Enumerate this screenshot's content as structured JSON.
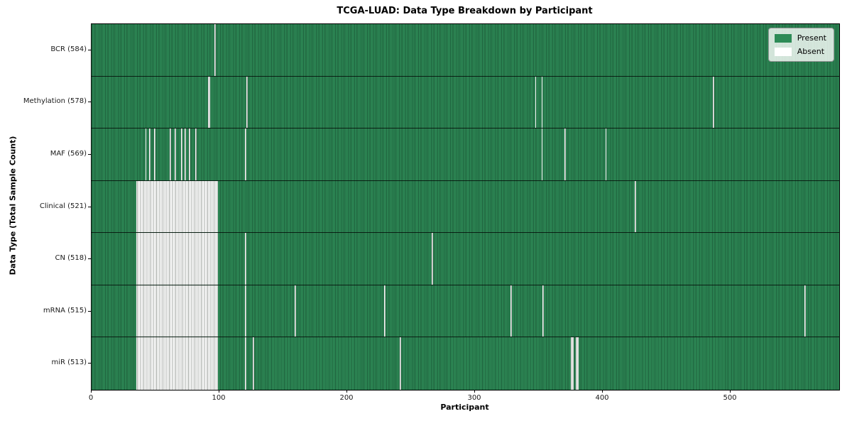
{
  "figure": {
    "title": "TCGA-LUAD: Data Type Breakdown by Participant",
    "xlabel": "Participant",
    "ylabel": "Data Type (Total Sample Count)"
  },
  "legend": {
    "present_label": "Present",
    "absent_label": "Absent"
  },
  "colors": {
    "present_green": "#2e8b57",
    "present_grid_dark": "#1d5f3b",
    "absent_white": "#ffffff",
    "absent_grid_gray": "#a4a8a4",
    "axis_black": "#000000"
  },
  "chart_data": {
    "type": "heatmap",
    "title": "TCGA-LUAD: Data Type Breakdown by Participant",
    "xlabel": "Participant",
    "ylabel": "Data Type (Total Sample Count)",
    "x_range": [
      0,
      585
    ],
    "x_ticks": [
      0,
      100,
      200,
      300,
      400,
      500
    ],
    "grid": "per-cell vertical gridlines",
    "legend_position": "upper right",
    "legend": [
      {
        "label": "Present",
        "color": "#2e8b57"
      },
      {
        "label": "Absent",
        "color": "#ffffff"
      }
    ],
    "rows": [
      {
        "label": "BCR (584)",
        "present_count": 584,
        "absent_ranges": [
          [
            96,
            1
          ]
        ]
      },
      {
        "label": "Methylation (578)",
        "present_count": 578,
        "absent_ranges": [
          [
            91,
            2
          ],
          [
            121,
            1
          ],
          [
            347,
            1
          ],
          [
            352,
            1
          ],
          [
            486,
            1
          ]
        ]
      },
      {
        "label": "MAF (569)",
        "present_count": 569,
        "absent_ranges": [
          [
            42,
            1
          ],
          [
            45,
            1
          ],
          [
            49,
            1
          ],
          [
            61,
            1
          ],
          [
            65,
            1
          ],
          [
            70,
            1
          ],
          [
            73,
            1
          ],
          [
            76,
            1
          ],
          [
            81,
            1
          ],
          [
            120,
            1
          ],
          [
            352,
            1
          ],
          [
            370,
            1
          ],
          [
            402,
            1
          ]
        ]
      },
      {
        "label": "Clinical (521)",
        "present_count": 521,
        "absent_ranges": [
          [
            35,
            64
          ],
          [
            425,
            1
          ]
        ]
      },
      {
        "label": "CN (518)",
        "present_count": 518,
        "absent_ranges": [
          [
            35,
            64
          ],
          [
            120,
            1
          ],
          [
            266,
            1
          ]
        ]
      },
      {
        "label": "mRNA (515)",
        "present_count": 515,
        "absent_ranges": [
          [
            35,
            64
          ],
          [
            120,
            1
          ],
          [
            159,
            1
          ],
          [
            229,
            1
          ],
          [
            328,
            1
          ],
          [
            353,
            1
          ],
          [
            558,
            1
          ]
        ]
      },
      {
        "label": "miR (513)",
        "present_count": 513,
        "absent_ranges": [
          [
            35,
            64
          ],
          [
            120,
            1
          ],
          [
            126,
            1
          ],
          [
            241,
            1
          ],
          [
            375,
            2
          ],
          [
            379,
            2
          ]
        ]
      }
    ]
  }
}
